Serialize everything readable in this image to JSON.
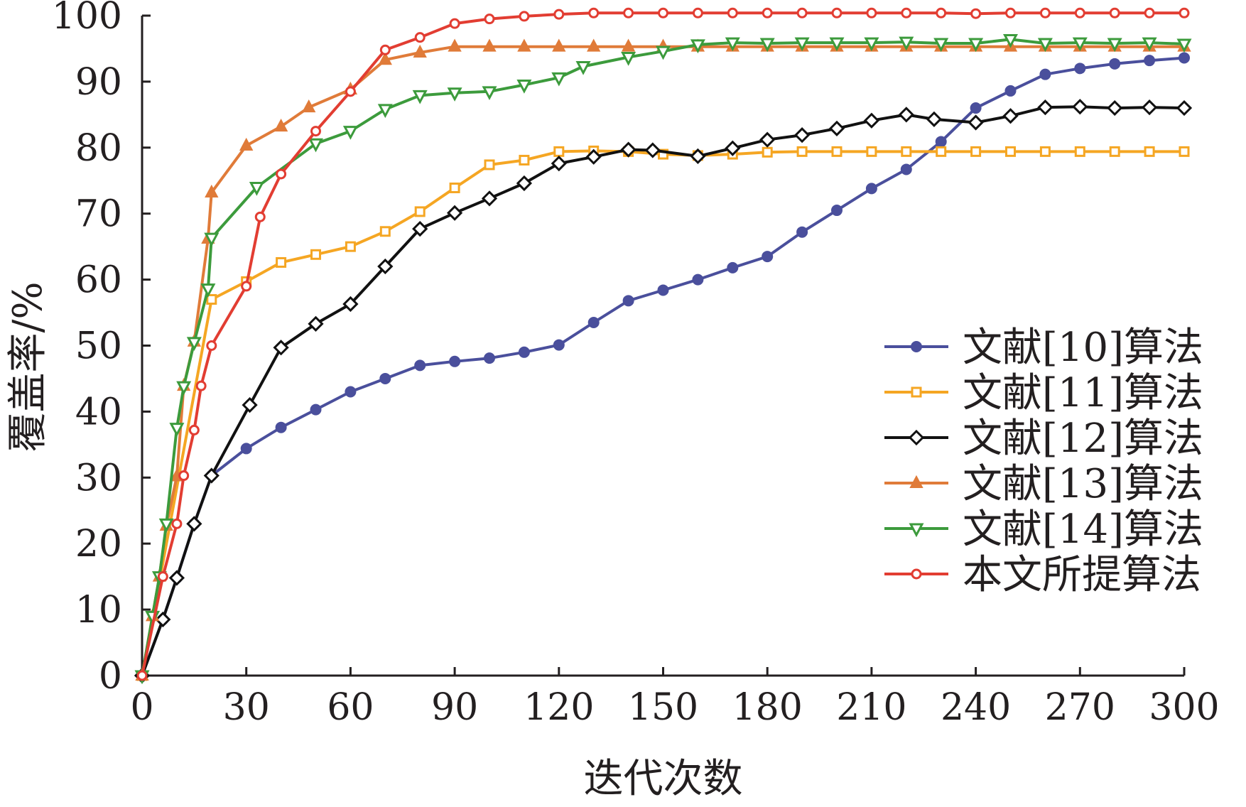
{
  "chart_data": {
    "type": "line",
    "title": "",
    "xlabel": "迭代次数",
    "ylabel": "覆盖率/%",
    "xlim": [
      0,
      300
    ],
    "ylim": [
      0,
      100
    ],
    "xticks": [
      0,
      30,
      60,
      90,
      120,
      150,
      180,
      210,
      240,
      270,
      300
    ],
    "yticks": [
      0,
      10,
      20,
      30,
      40,
      50,
      60,
      70,
      80,
      90,
      100
    ],
    "legend_position": "right",
    "series": [
      {
        "name": "文献[10]算法",
        "color": "#4a4f9c",
        "marker": "circle-filled",
        "x": [
          0,
          6,
          10,
          15,
          20,
          30,
          40,
          50,
          60,
          70,
          80,
          90,
          100,
          110,
          120,
          130,
          140,
          150,
          160,
          170,
          180,
          190,
          200,
          210,
          220,
          230,
          240,
          250,
          260,
          270,
          280,
          290,
          300
        ],
        "y": [
          0,
          8.5,
          14.8,
          23,
          30.3,
          34.4,
          37.6,
          40.3,
          43,
          45,
          47,
          47.6,
          48.1,
          49,
          50.1,
          53.5,
          56.8,
          58.4,
          60,
          61.8,
          63.5,
          67.2,
          70.5,
          73.8,
          76.7,
          80.9,
          86,
          88.6,
          91.1,
          92,
          92.7,
          93.2,
          93.6
        ]
      },
      {
        "name": "文献[11]算法",
        "color": "#f5a623",
        "marker": "square-open",
        "x": [
          0,
          20,
          30,
          40,
          50,
          60,
          70,
          80,
          90,
          100,
          110,
          120,
          130,
          140,
          150,
          160,
          170,
          180,
          190,
          200,
          210,
          220,
          230,
          240,
          250,
          260,
          270,
          280,
          290,
          300
        ],
        "y": [
          0,
          57,
          59.7,
          62.6,
          63.8,
          65,
          67.3,
          70.3,
          73.9,
          77.4,
          78.1,
          79.4,
          79.5,
          79.4,
          79,
          78.8,
          79,
          79.3,
          79.4,
          79.4,
          79.4,
          79.4,
          79.4,
          79.4,
          79.4,
          79.4,
          79.4,
          79.4,
          79.4,
          79.4
        ]
      },
      {
        "name": "文献[12]算法",
        "color": "#111111",
        "marker": "diamond-open",
        "x": [
          0,
          6,
          10,
          15,
          20,
          31,
          40,
          50,
          60,
          70,
          80,
          90,
          100,
          110,
          120,
          130,
          140,
          147,
          160,
          170,
          180,
          190,
          200,
          210,
          220,
          228,
          240,
          250,
          260,
          270,
          280,
          290,
          300
        ],
        "y": [
          0,
          8.5,
          14.8,
          23,
          30.3,
          41,
          49.7,
          53.3,
          56.3,
          62,
          67.7,
          70.1,
          72.3,
          74.6,
          77.6,
          78.6,
          79.7,
          79.6,
          78.7,
          79.9,
          81.2,
          81.9,
          82.9,
          84.1,
          85,
          84.3,
          83.8,
          84.8,
          86.1,
          86.2,
          86,
          86.1,
          86
        ]
      },
      {
        "name": "文献[13]算法",
        "color": "#e07b39",
        "marker": "triangle-up",
        "x": [
          0,
          3,
          5,
          7,
          10,
          12,
          15,
          19,
          20,
          30,
          40,
          48,
          60,
          70,
          80,
          90,
          100,
          110,
          120,
          130,
          140,
          150,
          160,
          170,
          180,
          190,
          200,
          210,
          220,
          230,
          240,
          250,
          260,
          270,
          280,
          290,
          300
        ],
        "y": [
          0,
          9,
          15,
          22.7,
          30.2,
          43.9,
          50.6,
          66.2,
          73.2,
          80.3,
          83.2,
          86.1,
          88.8,
          93.3,
          94.4,
          95.3,
          95.3,
          95.3,
          95.3,
          95.3,
          95.3,
          95.3,
          95.3,
          95.3,
          95.3,
          95.3,
          95.3,
          95.3,
          95.3,
          95.3,
          95.3,
          95.3,
          95.3,
          95.3,
          95.3,
          95.3,
          95.3
        ]
      },
      {
        "name": "文献[14]算法",
        "color": "#3c9b3c",
        "marker": "triangle-down",
        "x": [
          0,
          3,
          5,
          7,
          10,
          12,
          15,
          19,
          20,
          33,
          50,
          60,
          70,
          80,
          90,
          100,
          110,
          120,
          127,
          140,
          150,
          160,
          170,
          180,
          190,
          200,
          210,
          220,
          230,
          240,
          250,
          260,
          270,
          280,
          290,
          300
        ],
        "y": [
          0,
          9,
          15,
          23,
          37.5,
          43.8,
          50.5,
          58.6,
          66.3,
          74,
          80.6,
          82.5,
          85.8,
          87.9,
          88.3,
          88.5,
          89.5,
          90.6,
          92.3,
          93.7,
          94.6,
          95.6,
          95.9,
          95.8,
          95.9,
          95.9,
          95.9,
          96,
          95.8,
          95.8,
          96.4,
          95.8,
          95.9,
          95.8,
          95.9,
          95.7
        ]
      },
      {
        "name": "本文所提算法",
        "color": "#e23d32",
        "marker": "circle-open",
        "x": [
          0,
          6,
          10,
          12,
          15,
          17,
          20,
          30,
          34,
          40,
          50,
          60,
          70,
          80,
          90,
          100,
          110,
          120,
          130,
          140,
          150,
          160,
          170,
          180,
          190,
          200,
          210,
          220,
          230,
          240,
          250,
          260,
          270,
          280,
          290,
          300
        ],
        "y": [
          0,
          15,
          23,
          30.3,
          37.2,
          43.9,
          50,
          59,
          69.5,
          76,
          82.5,
          88.5,
          94.8,
          96.7,
          98.8,
          99.5,
          99.9,
          100.2,
          100.4,
          100.4,
          100.4,
          100.4,
          100.4,
          100.4,
          100.4,
          100.4,
          100.4,
          100.4,
          100.4,
          100.3,
          100.4,
          100.4,
          100.4,
          100.4,
          100.4,
          100.4
        ]
      }
    ]
  }
}
